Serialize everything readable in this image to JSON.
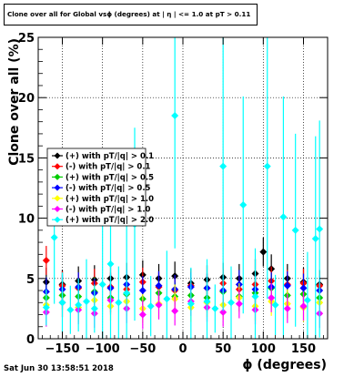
{
  "header": {
    "title": "Clone  over all for Global vsϕ (degrees) at | η | <= 1.0 at pT > 0.11"
  },
  "footer": {
    "timestamp": "Sat Jun 30 13:58:51 2018"
  },
  "chart_data": {
    "type": "scatter",
    "title": "Clone  over all for Global vsϕ (degrees) at | η | <= 1.0 at pT > 0.11",
    "xlabel": "ϕ (degrees)",
    "ylabel": "Clone  over all (%)",
    "xlim": [
      -180,
      180
    ],
    "ylim": [
      0,
      25
    ],
    "x_ticks": [
      -150,
      -100,
      -50,
      0,
      50,
      100,
      150
    ],
    "x_tick_labels": [
      "−150",
      "−100",
      "−50",
      "0",
      "50",
      "100",
      "150"
    ],
    "y_ticks": [
      0,
      5,
      10,
      15,
      20,
      25
    ],
    "y_tick_labels": [
      "0",
      "5",
      "10",
      "15",
      "20",
      "25"
    ],
    "grid": true,
    "legend_position": "left-middle",
    "series": [
      {
        "name": "(+) with pT/|q| > 0.1",
        "color": "#000000",
        "x": [
          -170,
          -150,
          -130,
          -110,
          -90,
          -70,
          -50,
          -30,
          -10,
          10,
          30,
          50,
          70,
          90,
          100,
          110,
          130,
          150,
          170
        ],
        "y": [
          4.7,
          4.5,
          4.8,
          4.9,
          5.0,
          5.1,
          5.3,
          5.0,
          5.2,
          4.6,
          4.9,
          5.1,
          5.0,
          5.4,
          7.2,
          5.8,
          5.0,
          4.7,
          4.5
        ]
      },
      {
        "name": "(-) with pT/|q| > 0.1",
        "color": "#ff0000",
        "x": [
          -170,
          -150,
          -130,
          -110,
          -90,
          -70,
          -50,
          -30,
          -10,
          10,
          30,
          50,
          70,
          90,
          110,
          130,
          150,
          170
        ],
        "y": [
          6.5,
          4.4,
          4.2,
          4.6,
          4.3,
          4.1,
          4.7,
          4.3,
          4.0,
          4.4,
          4.2,
          4.6,
          4.1,
          4.5,
          4.8,
          4.5,
          4.6,
          4.4
        ]
      },
      {
        "name": "(+) with pT/|q| > 0.5",
        "color": "#00cc00",
        "x": [
          -170,
          -150,
          -130,
          -110,
          -90,
          -70,
          -50,
          -30,
          -10,
          10,
          30,
          50,
          70,
          90,
          110,
          130,
          150,
          170
        ],
        "y": [
          3.4,
          3.6,
          3.5,
          3.9,
          3.4,
          3.7,
          3.3,
          3.8,
          3.5,
          3.6,
          3.4,
          3.9,
          3.5,
          3.8,
          4.2,
          3.6,
          3.7,
          3.4
        ]
      },
      {
        "name": "(-) with pT/|q| > 0.5",
        "color": "#0000ff",
        "x": [
          -170,
          -150,
          -130,
          -110,
          -90,
          -70,
          -50,
          -30,
          -10,
          10,
          30,
          50,
          70,
          90,
          110,
          130,
          150,
          170
        ],
        "y": [
          3.9,
          4.1,
          4.3,
          3.8,
          4.2,
          4.5,
          4.0,
          4.4,
          4.1,
          4.3,
          4.2,
          4.0,
          4.5,
          4.1,
          4.3,
          4.4,
          4.2,
          4.0
        ]
      },
      {
        "name": "(+) with pT/|q| > 1.0",
        "color": "#ffff00",
        "x": [
          -170,
          -150,
          -130,
          -110,
          -90,
          -70,
          -50,
          -30,
          -10,
          10,
          30,
          50,
          70,
          90,
          110,
          130,
          150,
          170
        ],
        "y": [
          2.8,
          3.0,
          2.6,
          3.2,
          2.7,
          3.1,
          2.5,
          2.9,
          3.3,
          2.6,
          3.0,
          2.8,
          3.4,
          2.7,
          3.1,
          2.9,
          2.6,
          3.0
        ]
      },
      {
        "name": "(-) with pT/|q| > 1.0",
        "color": "#ff00ff",
        "x": [
          -170,
          -150,
          -130,
          -110,
          -90,
          -70,
          -50,
          -30,
          -10,
          10,
          30,
          50,
          70,
          90,
          110,
          130,
          150,
          170
        ],
        "y": [
          2.2,
          3.0,
          2.4,
          2.1,
          3.2,
          2.5,
          2.0,
          2.8,
          2.3,
          3.1,
          2.6,
          2.2,
          2.9,
          2.4,
          3.4,
          2.5,
          2.7,
          2.1
        ]
      },
      {
        "name": "(+) with pT/|q| > 2.0",
        "color": "#00ffff",
        "x": [
          -170,
          -160,
          -150,
          -140,
          -130,
          -120,
          -110,
          -100,
          -90,
          -80,
          -70,
          -60,
          -40,
          -20,
          -10,
          10,
          30,
          40,
          50,
          60,
          75,
          90,
          105,
          115,
          125,
          140,
          155,
          165,
          170
        ],
        "y": [
          2.6,
          8.4,
          3.0,
          2.4,
          2.8,
          3.1,
          2.5,
          4.5,
          6.2,
          3.0,
          3.8,
          9.5,
          2.7,
          3.3,
          18.5,
          2.9,
          3.1,
          2.5,
          14.3,
          3.0,
          11.1,
          3.5,
          14.3,
          2.8,
          10.1,
          9.0,
          3.2,
          8.3,
          9.1
        ],
        "err": [
          1.5,
          5.5,
          2.5,
          2.0,
          2.2,
          3.5,
          2.0,
          5.0,
          8.0,
          3.0,
          6.0,
          8.0,
          2.5,
          4.0,
          11.0,
          3.0,
          3.5,
          2.0,
          12.0,
          3.0,
          9.0,
          4.0,
          11.0,
          2.5,
          10.0,
          8.0,
          4.0,
          8.5,
          9.0
        ]
      }
    ]
  }
}
